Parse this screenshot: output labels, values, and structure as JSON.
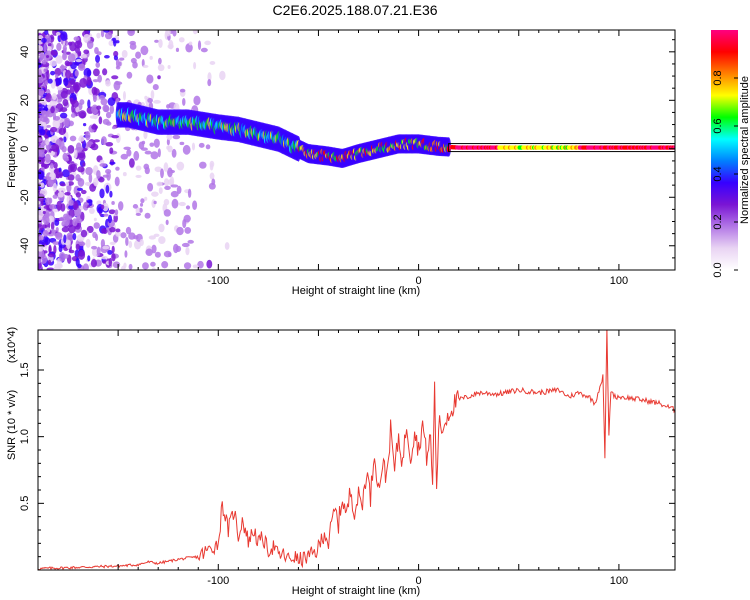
{
  "figure": {
    "title": "C2E6.2025.188.07.21.E36"
  },
  "chart_data": [
    {
      "type": "heatmap",
      "xlabel": "Height of straight line (km)",
      "ylabel": "Frequency (Hz)",
      "xlim": [
        -190,
        128
      ],
      "ylim": [
        -50,
        49
      ],
      "x_ticks": [
        "-100",
        "0",
        "100"
      ],
      "y_ticks": [
        "-40",
        "-20",
        "0",
        "20",
        "40"
      ],
      "colorbar": {
        "label": "Normalized spectral amplitude",
        "range": [
          0,
          1
        ],
        "ticks": [
          "0.0",
          "0.2",
          "0.4",
          "0.6",
          "0.8"
        ],
        "colormap": [
          "#ffffff",
          "#e9d4f3",
          "#b276e6",
          "#7a15d4",
          "#3700ff",
          "#0080ff",
          "#00ffff",
          "#00ff00",
          "#ffff00",
          "#ff8000",
          "#ff0000",
          "#ff0080"
        ]
      },
      "ridge": {
        "description_points": [
          [
            -145,
            14
          ],
          [
            -130,
            11
          ],
          [
            -115,
            11
          ],
          [
            -100,
            9
          ],
          [
            -90,
            8
          ],
          [
            -80,
            6
          ],
          [
            -70,
            4
          ],
          [
            -60,
            0
          ],
          [
            -55,
            -2
          ],
          [
            -45,
            -3
          ],
          [
            -38,
            -4
          ],
          [
            -30,
            -2
          ],
          [
            -20,
            0
          ],
          [
            -10,
            2
          ],
          [
            0,
            2
          ],
          [
            10,
            1
          ],
          [
            20,
            0.5
          ],
          [
            128,
            0.5
          ]
        ],
        "peak_segment": [
          15,
          128
        ]
      },
      "grid": false,
      "legend": "none"
    },
    {
      "type": "line",
      "xlabel": "Height of straight line (km)",
      "ylabel": "SNR (10 * v/v)",
      "y_multiplier": "(x10^4)",
      "xlim": [
        -190,
        128
      ],
      "ylim": [
        0,
        1.8
      ],
      "x_ticks": [
        "-100",
        "0",
        "100"
      ],
      "y_ticks": [
        "0.5",
        "1.0",
        "1.5"
      ],
      "series": [
        {
          "color": "#e83a32",
          "x": [
            -190,
            -170,
            -150,
            -140,
            -135,
            -130,
            -120,
            -110,
            -105,
            -100,
            -98,
            -95,
            -92,
            -90,
            -88,
            -85,
            -82,
            -80,
            -78,
            -75,
            -72,
            -70,
            -68,
            -65,
            -62,
            -60,
            -55,
            -50,
            -47,
            -45,
            -42,
            -40,
            -38,
            -36,
            -34,
            -32,
            -30,
            -28,
            -26,
            -24,
            -22,
            -20,
            -18,
            -16,
            -14,
            -12,
            -10,
            -8,
            -6,
            -4,
            -2,
            0,
            2,
            4,
            6,
            7,
            8,
            9,
            10,
            12,
            14,
            16,
            18,
            20,
            25,
            30,
            40,
            50,
            60,
            70,
            75,
            80,
            85,
            88,
            90,
            92,
            93,
            94,
            95,
            96,
            98,
            100,
            110,
            120,
            128
          ],
          "values": [
            0.01,
            0.02,
            0.03,
            0.04,
            0.06,
            0.05,
            0.08,
            0.1,
            0.15,
            0.2,
            0.5,
            0.3,
            0.45,
            0.25,
            0.38,
            0.22,
            0.3,
            0.2,
            0.24,
            0.15,
            0.18,
            0.1,
            0.12,
            0.08,
            0.1,
            0.07,
            0.1,
            0.15,
            0.3,
            0.2,
            0.45,
            0.35,
            0.55,
            0.4,
            0.6,
            0.45,
            0.55,
            0.5,
            0.75,
            0.55,
            0.9,
            0.6,
            0.8,
            0.7,
            1.05,
            0.75,
            1.0,
            0.8,
            1.1,
            0.85,
            1.05,
            0.9,
            1.1,
            0.85,
            1.0,
            0.6,
            1.43,
            0.55,
            1.1,
            1.05,
            1.15,
            1.2,
            1.25,
            1.28,
            1.3,
            1.33,
            1.32,
            1.35,
            1.33,
            1.35,
            1.3,
            1.33,
            1.3,
            1.25,
            1.35,
            1.45,
            0.85,
            1.8,
            1.0,
            1.35,
            1.3,
            1.3,
            1.28,
            1.25,
            1.2
          ]
        }
      ],
      "grid": false,
      "legend": "none"
    }
  ]
}
